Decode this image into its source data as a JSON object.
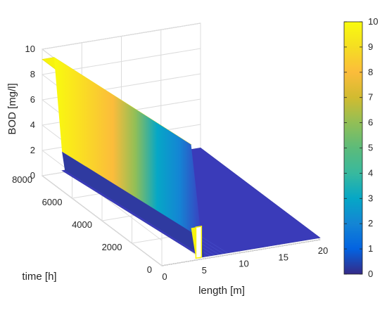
{
  "chart_data": {
    "type": "surface3d",
    "colormap": "parula",
    "grid": true,
    "box": true,
    "xlabel": "length [m]",
    "ylabel": "time [h]",
    "zlabel": "BOD [mg/l]",
    "xlim": [
      0,
      20
    ],
    "ylim": [
      0,
      8000
    ],
    "zlim": [
      0,
      10
    ],
    "xticks": [
      "0",
      "5",
      "10",
      "15",
      "20"
    ],
    "yticks": [
      "0",
      "2000",
      "4000",
      "6000",
      "8000"
    ],
    "zticks": [
      "0",
      "2",
      "4",
      "6",
      "8",
      "10"
    ],
    "colorbar": {
      "location": "right",
      "clim": [
        0,
        10
      ],
      "ticks": [
        "0",
        "1",
        "2",
        "3",
        "4",
        "5",
        "6",
        "7",
        "8",
        "9",
        "10"
      ]
    },
    "surface": {
      "description_values": {
        "upstream_level": 9.2,
        "downstream_level": 0.15,
        "front_min_time": 0,
        "front_position_at_t0": 5,
        "front_position_at_tmax": 2.5
      },
      "time_samples": [
        0,
        2000,
        4000,
        6000,
        8000
      ],
      "front_length": [
        5.0,
        4.4,
        3.75,
        3.1,
        2.5
      ]
    }
  }
}
